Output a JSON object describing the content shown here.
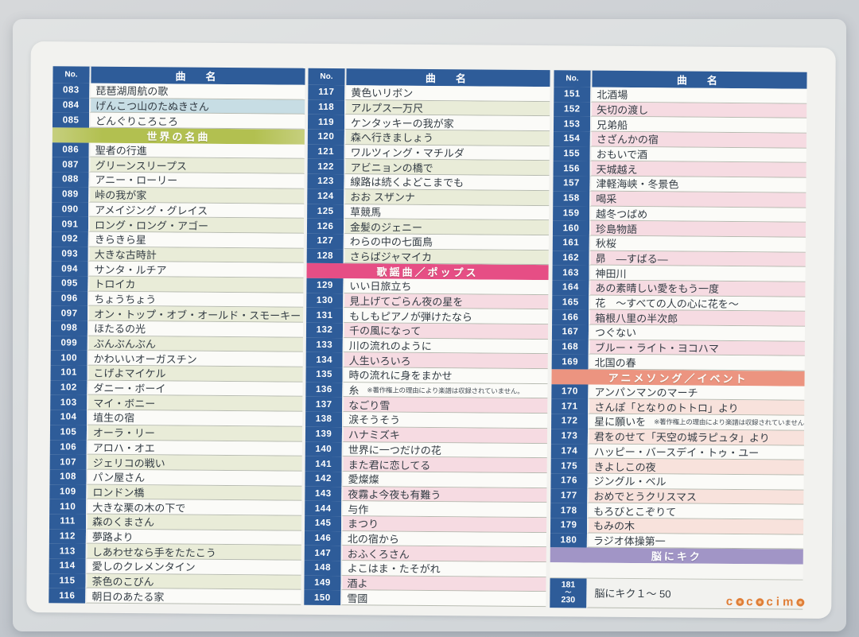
{
  "header": {
    "no": "No.",
    "name": "曲　名"
  },
  "logo": {
    "text": "cococimo"
  },
  "colors": {
    "header_blue": "#2e5c99",
    "band_green": "#b2c050",
    "band_pink": "#e64e85",
    "band_salmon": "#ec9480",
    "band_purple": "#a195c6",
    "shade_blue": "#c7dde4",
    "shade_green": "#e9ecd8",
    "shade_pink": "#f6dbe2",
    "shade_salmon": "#f8e2dc",
    "logo_orange": "#e07f38"
  },
  "copyright_note": "※著作権上の理由により楽譜は収録されていません。",
  "sections": [
    "世界の名曲",
    "歌謡曲／ポップス",
    "アニメソング／イベント",
    "脳にキク"
  ],
  "columns": [
    {
      "rows": [
        {
          "type": "song",
          "no": "083",
          "title": "琵琶湖周航の歌",
          "shade": "none"
        },
        {
          "type": "song",
          "no": "084",
          "title": "げんこつ山のたぬきさん",
          "shade": "blue"
        },
        {
          "type": "song",
          "no": "085",
          "title": "どんぐりころころ",
          "shade": "none"
        },
        {
          "type": "band",
          "label": "世界の名曲",
          "color": "green"
        },
        {
          "type": "song",
          "no": "086",
          "title": "聖者の行進",
          "shade": "none"
        },
        {
          "type": "song",
          "no": "087",
          "title": "グリーンスリープス",
          "shade": "green"
        },
        {
          "type": "song",
          "no": "088",
          "title": "アニー・ローリー",
          "shade": "none"
        },
        {
          "type": "song",
          "no": "089",
          "title": "峠の我が家",
          "shade": "green"
        },
        {
          "type": "song",
          "no": "090",
          "title": "アメイジング・グレイス",
          "shade": "none"
        },
        {
          "type": "song",
          "no": "091",
          "title": "ロング・ロング・アゴー",
          "shade": "green"
        },
        {
          "type": "song",
          "no": "092",
          "title": "きらきら星",
          "shade": "none"
        },
        {
          "type": "song",
          "no": "093",
          "title": "大きな古時計",
          "shade": "green"
        },
        {
          "type": "song",
          "no": "094",
          "title": "サンタ・ルチア",
          "shade": "none"
        },
        {
          "type": "song",
          "no": "095",
          "title": "トロイカ",
          "shade": "green"
        },
        {
          "type": "song",
          "no": "096",
          "title": "ちょうちょう",
          "shade": "none"
        },
        {
          "type": "song",
          "no": "097",
          "title": "オン・トップ・オブ・オールド・スモーキー",
          "shade": "green"
        },
        {
          "type": "song",
          "no": "098",
          "title": "ほたるの光",
          "shade": "none"
        },
        {
          "type": "song",
          "no": "099",
          "title": "ぶんぶんぶん",
          "shade": "green"
        },
        {
          "type": "song",
          "no": "100",
          "title": "かわいいオーガスチン",
          "shade": "none"
        },
        {
          "type": "song",
          "no": "101",
          "title": "こげよマイケル",
          "shade": "green"
        },
        {
          "type": "song",
          "no": "102",
          "title": "ダニー・ボーイ",
          "shade": "none"
        },
        {
          "type": "song",
          "no": "103",
          "title": "マイ・ボニー",
          "shade": "green"
        },
        {
          "type": "song",
          "no": "104",
          "title": "埴生の宿",
          "shade": "none"
        },
        {
          "type": "song",
          "no": "105",
          "title": "オーラ・リー",
          "shade": "green"
        },
        {
          "type": "song",
          "no": "106",
          "title": "アロハ・オエ",
          "shade": "none"
        },
        {
          "type": "song",
          "no": "107",
          "title": "ジェリコの戦い",
          "shade": "green"
        },
        {
          "type": "song",
          "no": "108",
          "title": "パン屋さん",
          "shade": "none"
        },
        {
          "type": "song",
          "no": "109",
          "title": "ロンドン橋",
          "shade": "green"
        },
        {
          "type": "song",
          "no": "110",
          "title": "大きな栗の木の下で",
          "shade": "none"
        },
        {
          "type": "song",
          "no": "111",
          "title": "森のくまさん",
          "shade": "green"
        },
        {
          "type": "song",
          "no": "112",
          "title": "夢路より",
          "shade": "none"
        },
        {
          "type": "song",
          "no": "113",
          "title": "しあわせなら手をたたこう",
          "shade": "green"
        },
        {
          "type": "song",
          "no": "114",
          "title": "愛しのクレメンタイン",
          "shade": "none"
        },
        {
          "type": "song",
          "no": "115",
          "title": "茶色のこびん",
          "shade": "green"
        },
        {
          "type": "song",
          "no": "116",
          "title": "朝日のあたる家",
          "shade": "none"
        }
      ]
    },
    {
      "rows": [
        {
          "type": "song",
          "no": "117",
          "title": "黄色いリボン",
          "shade": "none"
        },
        {
          "type": "song",
          "no": "118",
          "title": "アルプス一万尺",
          "shade": "green"
        },
        {
          "type": "song",
          "no": "119",
          "title": "ケンタッキーの我が家",
          "shade": "none"
        },
        {
          "type": "song",
          "no": "120",
          "title": "森へ行きましょう",
          "shade": "green"
        },
        {
          "type": "song",
          "no": "121",
          "title": "ワルツィング・マチルダ",
          "shade": "none"
        },
        {
          "type": "song",
          "no": "122",
          "title": "アビニョンの橋で",
          "shade": "green"
        },
        {
          "type": "song",
          "no": "123",
          "title": "線路は続くよどこまでも",
          "shade": "none"
        },
        {
          "type": "song",
          "no": "124",
          "title": "おお スザンナ",
          "shade": "green"
        },
        {
          "type": "song",
          "no": "125",
          "title": "草競馬",
          "shade": "none"
        },
        {
          "type": "song",
          "no": "126",
          "title": "金髪のジェニー",
          "shade": "green"
        },
        {
          "type": "song",
          "no": "127",
          "title": "わらの中の七面鳥",
          "shade": "none"
        },
        {
          "type": "song",
          "no": "128",
          "title": "さらばジャマイカ",
          "shade": "green"
        },
        {
          "type": "band",
          "label": "歌謡曲／ポップス",
          "color": "pink"
        },
        {
          "type": "song",
          "no": "129",
          "title": "いい日旅立ち",
          "shade": "none"
        },
        {
          "type": "song",
          "no": "130",
          "title": "見上げてごらん夜の星を",
          "shade": "pink"
        },
        {
          "type": "song",
          "no": "131",
          "title": "もしもピアノが弾けたなら",
          "shade": "none"
        },
        {
          "type": "song",
          "no": "132",
          "title": "千の風になって",
          "shade": "pink"
        },
        {
          "type": "song",
          "no": "133",
          "title": "川の流れのように",
          "shade": "none"
        },
        {
          "type": "song",
          "no": "134",
          "title": "人生いろいろ",
          "shade": "pink"
        },
        {
          "type": "song",
          "no": "135",
          "title": "時の流れに身をまかせ",
          "shade": "none"
        },
        {
          "type": "song",
          "no": "136",
          "title": "糸",
          "note": "※著作権上の理由により楽譜は収録されていません。",
          "shade": "none"
        },
        {
          "type": "song",
          "no": "137",
          "title": "なごり雪",
          "shade": "pink"
        },
        {
          "type": "song",
          "no": "138",
          "title": "涙そうそう",
          "shade": "none"
        },
        {
          "type": "song",
          "no": "139",
          "title": "ハナミズキ",
          "shade": "pink"
        },
        {
          "type": "song",
          "no": "140",
          "title": "世界に一つだけの花",
          "shade": "none"
        },
        {
          "type": "song",
          "no": "141",
          "title": "また君に恋してる",
          "shade": "pink"
        },
        {
          "type": "song",
          "no": "142",
          "title": "愛燦燦",
          "shade": "none"
        },
        {
          "type": "song",
          "no": "143",
          "title": "夜霧よ今夜も有難う",
          "shade": "pink"
        },
        {
          "type": "song",
          "no": "144",
          "title": "与作",
          "shade": "none"
        },
        {
          "type": "song",
          "no": "145",
          "title": "まつり",
          "shade": "pink"
        },
        {
          "type": "song",
          "no": "146",
          "title": "北の宿から",
          "shade": "none"
        },
        {
          "type": "song",
          "no": "147",
          "title": "おふくろさん",
          "shade": "pink"
        },
        {
          "type": "song",
          "no": "148",
          "title": "よこはま・たそがれ",
          "shade": "none"
        },
        {
          "type": "song",
          "no": "149",
          "title": "酒よ",
          "shade": "pink"
        },
        {
          "type": "song",
          "no": "150",
          "title": "雪國",
          "shade": "none"
        }
      ]
    },
    {
      "rows": [
        {
          "type": "song",
          "no": "151",
          "title": "北酒場",
          "shade": "none"
        },
        {
          "type": "song",
          "no": "152",
          "title": "矢切の渡し",
          "shade": "pink"
        },
        {
          "type": "song",
          "no": "153",
          "title": "兄弟船",
          "shade": "none"
        },
        {
          "type": "song",
          "no": "154",
          "title": "さざんかの宿",
          "shade": "pink"
        },
        {
          "type": "song",
          "no": "155",
          "title": "おもいで酒",
          "shade": "none"
        },
        {
          "type": "song",
          "no": "156",
          "title": "天城越え",
          "shade": "pink"
        },
        {
          "type": "song",
          "no": "157",
          "title": "津軽海峡・冬景色",
          "shade": "none"
        },
        {
          "type": "song",
          "no": "158",
          "title": "喝采",
          "shade": "pink"
        },
        {
          "type": "song",
          "no": "159",
          "title": "越冬つばめ",
          "shade": "none"
        },
        {
          "type": "song",
          "no": "160",
          "title": "珍島物語",
          "shade": "pink"
        },
        {
          "type": "song",
          "no": "161",
          "title": "秋桜",
          "shade": "none"
        },
        {
          "type": "song",
          "no": "162",
          "title": "昴　―すばる―",
          "shade": "pink"
        },
        {
          "type": "song",
          "no": "163",
          "title": "神田川",
          "shade": "none"
        },
        {
          "type": "song",
          "no": "164",
          "title": "あの素晴しい愛をもう一度",
          "shade": "pink"
        },
        {
          "type": "song",
          "no": "165",
          "title": "花　～すべての人の心に花を～",
          "shade": "none"
        },
        {
          "type": "song",
          "no": "166",
          "title": "箱根八里の半次郎",
          "shade": "pink"
        },
        {
          "type": "song",
          "no": "167",
          "title": "つぐない",
          "shade": "none"
        },
        {
          "type": "song",
          "no": "168",
          "title": "ブルー・ライト・ヨコハマ",
          "shade": "pink"
        },
        {
          "type": "song",
          "no": "169",
          "title": "北国の春",
          "shade": "none"
        },
        {
          "type": "band",
          "label": "アニメソング／イベント",
          "color": "salmon"
        },
        {
          "type": "song",
          "no": "170",
          "title": "アンパンマンのマーチ",
          "shade": "none"
        },
        {
          "type": "song",
          "no": "171",
          "title": "さんぽ「となりのトトロ」より",
          "shade": "salmon"
        },
        {
          "type": "song",
          "no": "172",
          "title": "星に願いを",
          "note": "※著作権上の理由により楽譜は収録されていません。",
          "shade": "none"
        },
        {
          "type": "song",
          "no": "173",
          "title": "君をのせて「天空の城ラピュタ」より",
          "shade": "salmon"
        },
        {
          "type": "song",
          "no": "174",
          "title": "ハッピー・バースデイ・トゥ・ユー",
          "shade": "none"
        },
        {
          "type": "song",
          "no": "175",
          "title": "きよしこの夜",
          "shade": "salmon"
        },
        {
          "type": "song",
          "no": "176",
          "title": "ジングル・ベル",
          "shade": "none"
        },
        {
          "type": "song",
          "no": "177",
          "title": "おめでとうクリスマス",
          "shade": "salmon"
        },
        {
          "type": "song",
          "no": "178",
          "title": "もろびとこぞりて",
          "shade": "none"
        },
        {
          "type": "song",
          "no": "179",
          "title": "もみの木",
          "shade": "salmon"
        },
        {
          "type": "song",
          "no": "180",
          "title": "ラジオ体操第一",
          "shade": "none"
        },
        {
          "type": "band",
          "label": "脳にキク",
          "color": "purple"
        },
        {
          "type": "empty"
        },
        {
          "type": "range",
          "no_top": "181",
          "no_sep": "～",
          "no_bottom": "230",
          "title": "脳にキク１～ 50"
        }
      ]
    }
  ]
}
